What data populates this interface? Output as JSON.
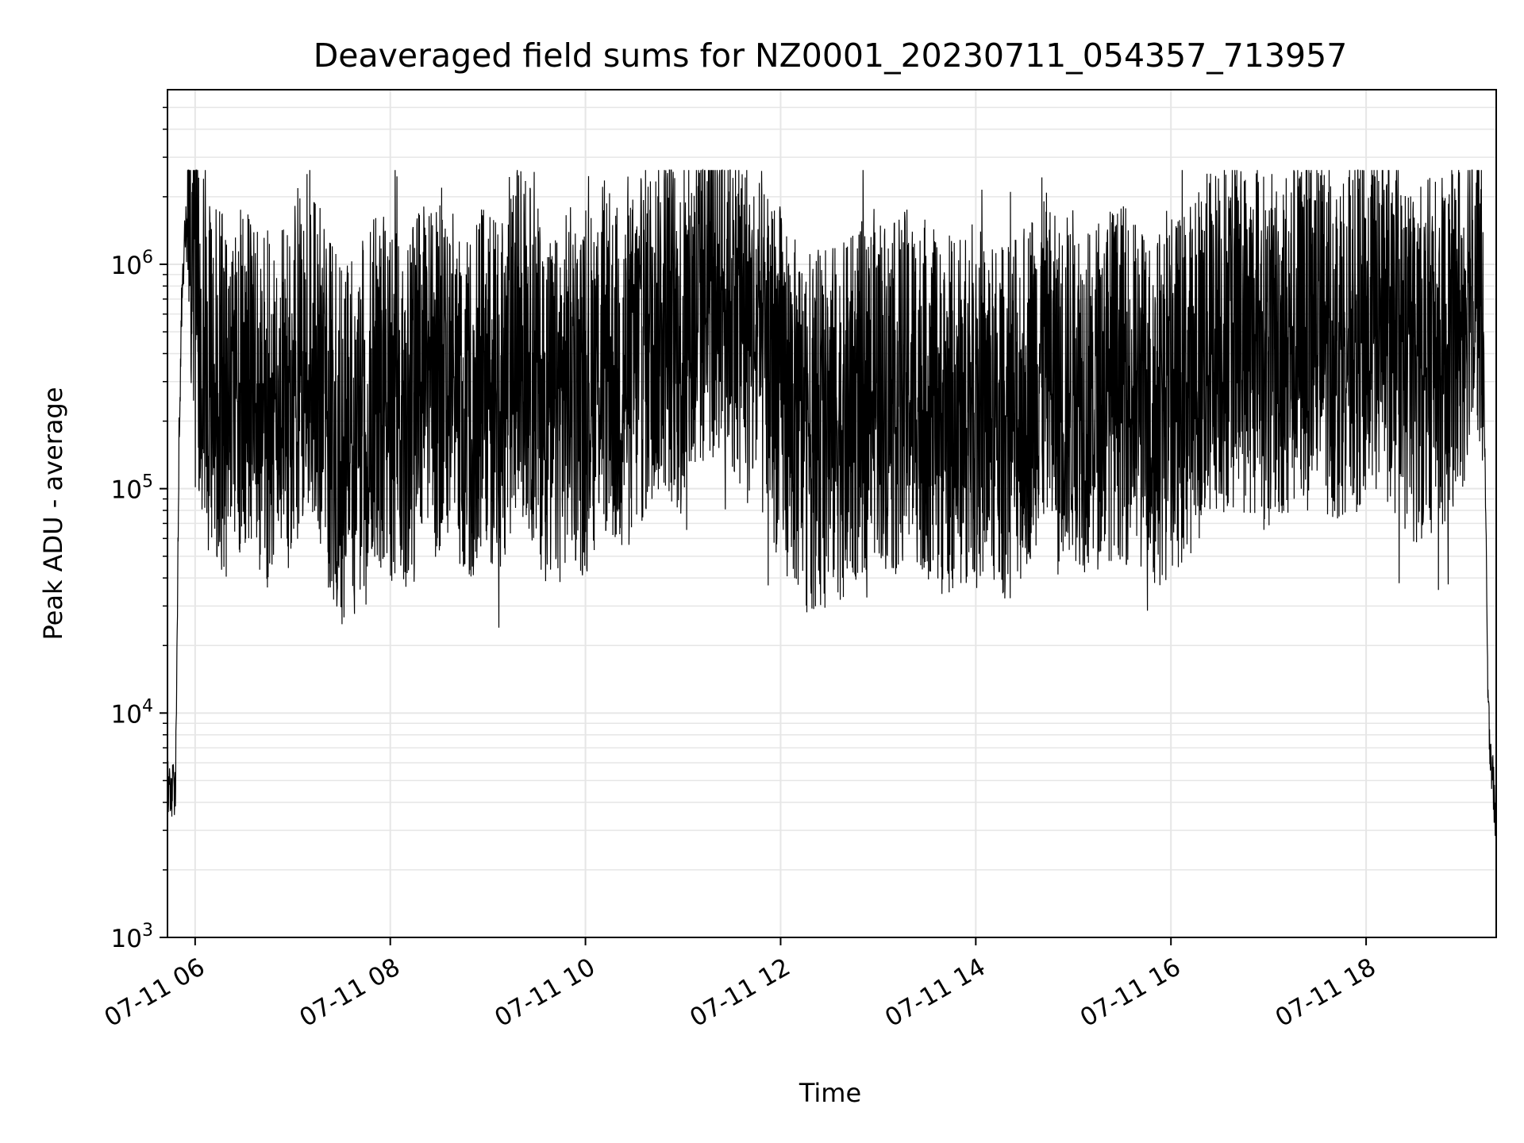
{
  "chart_data": {
    "type": "line",
    "title": "Deaveraged field sums for NZ0001_20230711_054357_713957",
    "xlabel": "Time",
    "ylabel": "Peak ADU - average",
    "x_range": [
      "07-11 05:43",
      "07-11 19:20"
    ],
    "x_ticks": [
      "07-11 06",
      "07-11 08",
      "07-11 10",
      "07-11 12",
      "07-11 14",
      "07-11 16",
      "07-11 18"
    ],
    "y_scale": "log",
    "ylim": [
      1000,
      6000000
    ],
    "y_ticks": [
      {
        "value": 1000,
        "base": "10",
        "exp": "3"
      },
      {
        "value": 10000,
        "base": "10",
        "exp": "4"
      },
      {
        "value": 100000,
        "base": "10",
        "exp": "5"
      },
      {
        "value": 1000000,
        "base": "10",
        "exp": "6"
      }
    ],
    "grid": true,
    "line_color": "#000000",
    "series": [
      {
        "x": [
          "05:43",
          "05:45",
          "05:48",
          "05:50",
          "05:52",
          "05:54",
          "05:56",
          "05:58",
          "06:00",
          "06:05",
          "06:10",
          "06:20",
          "06:30",
          "06:40",
          "06:50",
          "07:00",
          "07:10",
          "07:20",
          "07:30",
          "07:40",
          "07:50",
          "08:00",
          "08:10",
          "08:20",
          "08:30",
          "08:40",
          "08:50",
          "09:00",
          "09:10",
          "09:20",
          "09:30",
          "09:40",
          "09:50",
          "10:00",
          "10:10",
          "10:20",
          "10:30",
          "10:40",
          "10:50",
          "11:00",
          "11:10",
          "11:20",
          "11:30",
          "11:40",
          "11:50",
          "12:00",
          "12:10",
          "12:20",
          "12:30",
          "12:40",
          "12:50",
          "13:00",
          "13:10",
          "13:20",
          "13:30",
          "13:40",
          "13:50",
          "14:00",
          "14:10",
          "14:20",
          "14:30",
          "14:40",
          "14:50",
          "15:00",
          "15:10",
          "15:20",
          "15:30",
          "15:40",
          "15:50",
          "16:00",
          "16:10",
          "16:20",
          "16:30",
          "16:40",
          "16:50",
          "17:00",
          "17:10",
          "17:20",
          "17:30",
          "17:40",
          "17:50",
          "18:00",
          "18:10",
          "18:20",
          "18:30",
          "18:40",
          "18:50",
          "19:00",
          "19:05",
          "19:08",
          "19:12",
          "19:15",
          "19:18",
          "19:20"
        ],
        "y": [
          5000,
          4200,
          4800,
          150000,
          800000,
          1400000,
          1300000,
          900000,
          600000,
          400000,
          300000,
          250000,
          300000,
          250000,
          200000,
          300000,
          500000,
          250000,
          150000,
          180000,
          300000,
          250000,
          200000,
          300000,
          300000,
          250000,
          250000,
          300000,
          250000,
          500000,
          300000,
          200000,
          300000,
          250000,
          400000,
          300000,
          350000,
          500000,
          600000,
          400000,
          700000,
          900000,
          800000,
          500000,
          400000,
          300000,
          200000,
          180000,
          200000,
          200000,
          250000,
          300000,
          250000,
          300000,
          250000,
          200000,
          220000,
          250000,
          200000,
          200000,
          250000,
          400000,
          250000,
          300000,
          250000,
          300000,
          300000,
          250000,
          220000,
          250000,
          300000,
          400000,
          500000,
          500000,
          450000,
          400000,
          450000,
          500000,
          500000,
          450000,
          500000,
          500000,
          600000,
          400000,
          350000,
          400000,
          400000,
          600000,
          1300000,
          1200000,
          600000,
          10000,
          5000,
          3000
        ]
      }
    ]
  }
}
